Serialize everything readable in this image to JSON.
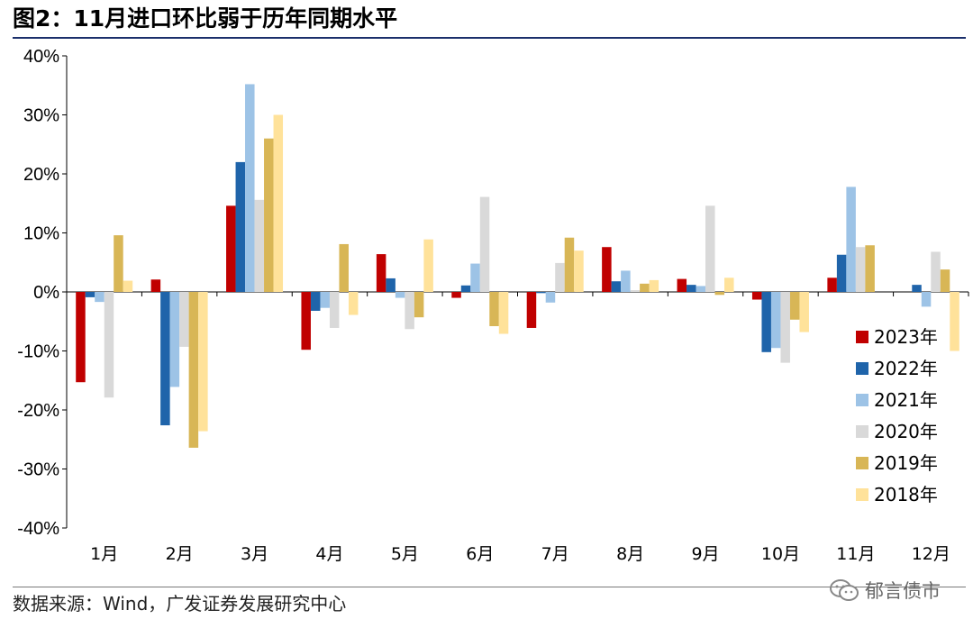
{
  "header": {
    "title": "图2：11月进口环比弱于历年同期水平"
  },
  "footer": {
    "source": "数据来源：Wind，广发证券发展研究中心",
    "watermark": "郁言债市"
  },
  "colors": {
    "2023年": "#c00000",
    "2022年": "#1f64aa",
    "2021年": "#9dc3e6",
    "2020年": "#d9d9d9",
    "2019年": "#d8b656",
    "2018年": "#ffe29a"
  },
  "chart_data": {
    "type": "bar",
    "title": "11月进口环比弱于历年同期水平",
    "xlabel": "",
    "ylabel": "",
    "ylim": [
      -40,
      40
    ],
    "yticks": [
      "40%",
      "30%",
      "20%",
      "10%",
      "0%",
      "-10%",
      "-20%",
      "-30%",
      "-40%"
    ],
    "legend_position": "bottom-right",
    "grid": false,
    "categories": [
      "1月",
      "2月",
      "3月",
      "4月",
      "5月",
      "6月",
      "7月",
      "8月",
      "9月",
      "10月",
      "11月",
      "12月"
    ],
    "series": [
      {
        "name": "2023年",
        "values": [
          -15.3,
          2.1,
          14.6,
          -9.8,
          6.4,
          -1.0,
          -6.1,
          7.6,
          2.2,
          -1.3,
          2.4,
          null
        ]
      },
      {
        "name": "2022年",
        "values": [
          -0.9,
          -22.6,
          22.0,
          -3.2,
          2.3,
          1.1,
          -0.2,
          1.8,
          1.2,
          -10.2,
          6.3,
          1.2
        ]
      },
      {
        "name": "2021年",
        "values": [
          -1.7,
          -16.1,
          35.2,
          -2.7,
          -1.0,
          4.8,
          -1.8,
          3.6,
          1.0,
          -9.5,
          17.8,
          -2.5
        ]
      },
      {
        "name": "2020年",
        "values": [
          -17.9,
          -9.3,
          15.6,
          -6.1,
          -6.3,
          16.1,
          4.9,
          0.3,
          14.6,
          -12.0,
          7.6,
          6.8
        ]
      },
      {
        "name": "2019年",
        "values": [
          9.6,
          -26.4,
          26.0,
          8.1,
          -4.3,
          -5.8,
          9.2,
          1.4,
          -0.5,
          -4.7,
          7.9,
          3.8
        ]
      },
      {
        "name": "2018年",
        "values": [
          1.9,
          -23.6,
          30.0,
          -3.9,
          8.9,
          -7.1,
          7.0,
          2.0,
          2.4,
          -6.8,
          null,
          -10.0
        ]
      }
    ]
  }
}
